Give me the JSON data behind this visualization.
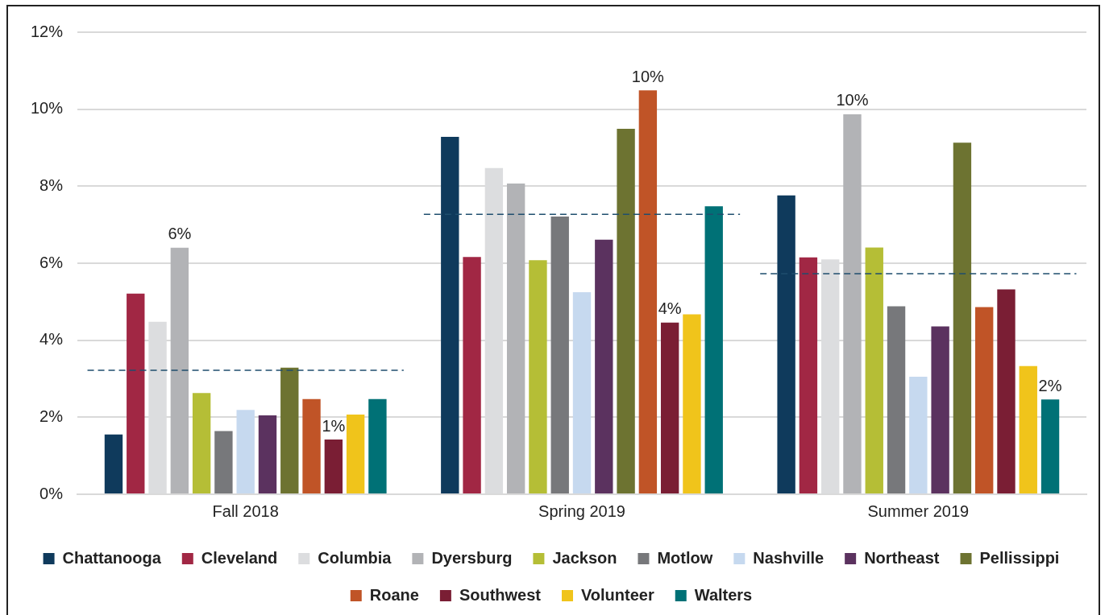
{
  "chart_data": {
    "type": "bar",
    "categories": [
      "Fall 2018",
      "Spring 2019",
      "Summer 2019"
    ],
    "series": [
      {
        "name": "Chattanooga",
        "color": "#0f3a5c",
        "values": [
          1.55,
          9.28,
          7.76
        ]
      },
      {
        "name": "Cleveland",
        "color": "#a12744",
        "values": [
          5.21,
          6.16,
          6.15
        ]
      },
      {
        "name": "Columbia",
        "color": "#dcdddf",
        "values": [
          4.48,
          8.47,
          6.1
        ]
      },
      {
        "name": "Dyersburg",
        "color": "#b2b3b6",
        "values": [
          6.4,
          8.07,
          9.87
        ],
        "value_labels": [
          "6%",
          null,
          "10%"
        ]
      },
      {
        "name": "Jackson",
        "color": "#b5be36",
        "values": [
          2.63,
          6.08,
          6.41
        ]
      },
      {
        "name": "Motlow",
        "color": "#77787b",
        "values": [
          1.64,
          7.21,
          4.88
        ]
      },
      {
        "name": "Nashville",
        "color": "#c6d9ef",
        "values": [
          2.19,
          5.25,
          3.05
        ]
      },
      {
        "name": "Northeast",
        "color": "#5b325f",
        "values": [
          2.05,
          6.61,
          4.36
        ]
      },
      {
        "name": "Pellissippi",
        "color": "#6d7331",
        "values": [
          3.29,
          9.49,
          9.13
        ]
      },
      {
        "name": "Roane",
        "color": "#c05427",
        "values": [
          2.47,
          10.49,
          4.86
        ],
        "value_labels": [
          null,
          "10%",
          null
        ]
      },
      {
        "name": "Southwest",
        "color": "#7a1e34",
        "values": [
          1.42,
          4.46,
          5.32
        ],
        "value_labels": [
          "1%",
          "4%",
          null
        ]
      },
      {
        "name": "Volunteer",
        "color": "#f0c41b",
        "values": [
          2.07,
          4.67,
          3.33
        ]
      },
      {
        "name": "Walters",
        "color": "#007176",
        "values": [
          2.47,
          7.48,
          2.46
        ],
        "value_labels": [
          null,
          null,
          "2%"
        ]
      }
    ],
    "ylim": [
      0,
      12
    ],
    "yticks": [
      {
        "value": 0,
        "label": "0%"
      },
      {
        "value": 2,
        "label": "2%"
      },
      {
        "value": 4,
        "label": "4%"
      },
      {
        "value": 6,
        "label": "6%"
      },
      {
        "value": 8,
        "label": "8%"
      },
      {
        "value": 10,
        "label": "10%"
      },
      {
        "value": 12,
        "label": "12%"
      }
    ],
    "ref_lines": [
      {
        "axis": "y",
        "value": 3.22,
        "color": "#1f4e6e",
        "line_style": "dashed"
      },
      {
        "axis": "y",
        "value": 7.27,
        "color": "#1f4e6e",
        "line_style": "dashed"
      },
      {
        "axis": "y",
        "value": 5.73,
        "color": "#1f4e6e",
        "line_style": "dashed"
      }
    ],
    "grid": "y",
    "legend": "bottom"
  }
}
